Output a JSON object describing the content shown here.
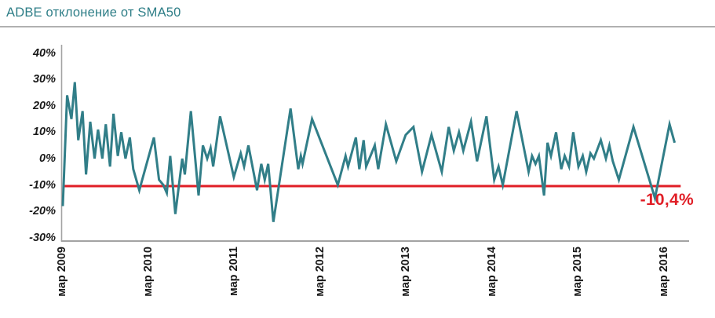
{
  "header": {
    "title": "ADBE отклонение от SMA50"
  },
  "colors": {
    "title": "#2e7e87",
    "line": "#317e88",
    "threshold": "#e01e26",
    "axis": "#a3a3a3",
    "divider": "#b0b0b0",
    "tick_text": "#1a1a1a"
  },
  "chart_data": {
    "type": "line",
    "title": "ADBE отклонение от SMA50",
    "xlabel": "",
    "ylabel": "",
    "grid": false,
    "legend": "none",
    "x_unit": "years since мар 2009",
    "xlim": [
      -0.02,
      7.3
    ],
    "ylim": [
      -31,
      43
    ],
    "x_tick_positions": [
      0,
      1,
      2,
      3,
      4,
      5,
      6,
      7
    ],
    "x_tick_labels": [
      "мар 2009",
      "мар 2010",
      "мар 2011",
      "мар 2012",
      "мар 2013",
      "мар 2014",
      "мар 2015",
      "мар 2016"
    ],
    "y_tick_values": [
      40,
      30,
      20,
      10,
      0,
      -10,
      -20,
      -30
    ],
    "y_tick_labels": [
      "40%",
      "30%",
      "20%",
      "10%",
      "0%",
      "-10%",
      "-20%",
      "-30%"
    ],
    "threshold_line": {
      "value": -10.4,
      "label": "-10,4%",
      "color": "#e01e26",
      "x_start": 0,
      "x_end": 7.19
    },
    "series": [
      {
        "name": "ADBE отклонение от SMA50, %",
        "color": "#317e88",
        "points": [
          [
            0,
            -18
          ],
          [
            0.05,
            24
          ],
          [
            0.1,
            15
          ],
          [
            0.14,
            29
          ],
          [
            0.18,
            7
          ],
          [
            0.23,
            18
          ],
          [
            0.27,
            -6
          ],
          [
            0.32,
            14
          ],
          [
            0.37,
            0
          ],
          [
            0.41,
            11
          ],
          [
            0.46,
            0
          ],
          [
            0.5,
            13
          ],
          [
            0.55,
            -3
          ],
          [
            0.59,
            17
          ],
          [
            0.64,
            1
          ],
          [
            0.68,
            10
          ],
          [
            0.73,
            0
          ],
          [
            0.78,
            8
          ],
          [
            0.82,
            -4
          ],
          [
            0.89,
            -12
          ],
          [
            1.06,
            8
          ],
          [
            1.12,
            -8
          ],
          [
            1.17,
            -10
          ],
          [
            1.21,
            -13
          ],
          [
            1.25,
            1
          ],
          [
            1.31,
            -21
          ],
          [
            1.39,
            0
          ],
          [
            1.42,
            -6
          ],
          [
            1.49,
            18
          ],
          [
            1.58,
            -14
          ],
          [
            1.63,
            5
          ],
          [
            1.68,
            0
          ],
          [
            1.72,
            4
          ],
          [
            1.75,
            -3
          ],
          [
            1.83,
            16
          ],
          [
            1.99,
            -7
          ],
          [
            2.07,
            2
          ],
          [
            2.11,
            -3
          ],
          [
            2.16,
            5
          ],
          [
            2.26,
            -12
          ],
          [
            2.31,
            -2
          ],
          [
            2.35,
            -8
          ],
          [
            2.39,
            -2
          ],
          [
            2.45,
            -24
          ],
          [
            2.65,
            19
          ],
          [
            2.74,
            -4
          ],
          [
            2.77,
            1
          ],
          [
            2.79,
            -2
          ],
          [
            2.9,
            15
          ],
          [
            3.2,
            -10
          ],
          [
            3.29,
            1
          ],
          [
            3.32,
            -3
          ],
          [
            3.41,
            8
          ],
          [
            3.45,
            -4
          ],
          [
            3.5,
            7
          ],
          [
            3.53,
            -3
          ],
          [
            3.63,
            5
          ],
          [
            3.67,
            -4
          ],
          [
            3.76,
            13
          ],
          [
            3.88,
            -1
          ],
          [
            3.99,
            9
          ],
          [
            4.08,
            12
          ],
          [
            4.18,
            -5
          ],
          [
            4.29,
            9
          ],
          [
            4.41,
            -5
          ],
          [
            4.49,
            12
          ],
          [
            4.55,
            3
          ],
          [
            4.61,
            10
          ],
          [
            4.66,
            3
          ],
          [
            4.75,
            14
          ],
          [
            4.82,
            -1
          ],
          [
            4.93,
            16
          ],
          [
            5.02,
            -8
          ],
          [
            5.07,
            -3
          ],
          [
            5.12,
            -10
          ],
          [
            5.28,
            18
          ],
          [
            5.42,
            -5
          ],
          [
            5.46,
            1
          ],
          [
            5.5,
            -2
          ],
          [
            5.54,
            1
          ],
          [
            5.6,
            -14
          ],
          [
            5.64,
            6
          ],
          [
            5.68,
            1
          ],
          [
            5.74,
            10
          ],
          [
            5.8,
            -4
          ],
          [
            5.84,
            1
          ],
          [
            5.89,
            -3
          ],
          [
            5.94,
            10
          ],
          [
            6,
            -3
          ],
          [
            6.05,
            1
          ],
          [
            6.09,
            -5
          ],
          [
            6.14,
            2
          ],
          [
            6.18,
            0
          ],
          [
            6.26,
            7
          ],
          [
            6.32,
            0
          ],
          [
            6.36,
            5
          ],
          [
            6.4,
            -1
          ],
          [
            6.47,
            -8
          ],
          [
            6.64,
            12
          ],
          [
            6.89,
            -15
          ],
          [
            7.06,
            13
          ],
          [
            7.12,
            6
          ]
        ]
      }
    ]
  }
}
